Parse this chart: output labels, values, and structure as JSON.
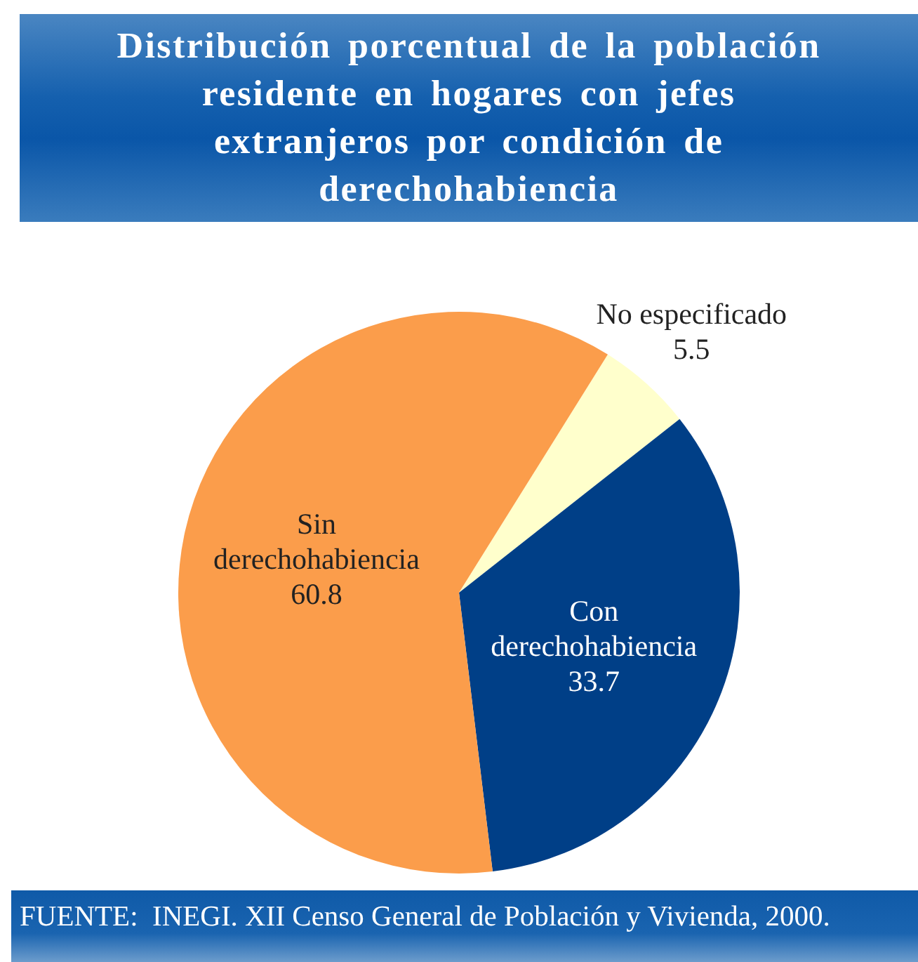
{
  "chart_data": {
    "type": "pie",
    "title": "Distribución porcentual de la población residente en hogares con jefes extranjeros por condición de derechohabiencia",
    "categories": [
      "No especificado",
      "Con derechohabiencia",
      "Sin derechohabiencia"
    ],
    "values": [
      5.5,
      33.7,
      60.8
    ],
    "colors": [
      "#ffffcc",
      "#003f87",
      "#fb9d4b"
    ],
    "data_labels": true,
    "legend": false,
    "annotations": [
      "FUENTE:  INEGI. XII Censo General de Población y Vivienda, 2000."
    ]
  }
}
